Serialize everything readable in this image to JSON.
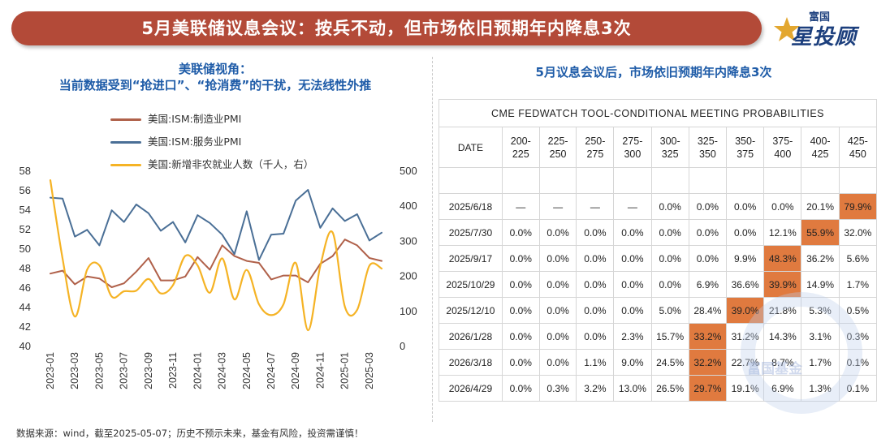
{
  "banner": {
    "title": "5月美联储议息会议：按兵不动，但市场依旧预期年内降息3次"
  },
  "logo": {
    "small": "富国",
    "big": "星投顾"
  },
  "left_panel": {
    "title_line1": "美联储视角：",
    "title_line2": "当前数据受到“抢进口”、“抢消费”的干扰，无法线性外推"
  },
  "right_panel": {
    "title": "5月议息会议后，市场依旧预期年内降息3次"
  },
  "colors": {
    "manufacturing": "#b0614a",
    "services": "#4a6f96",
    "payrolls": "#f5b325",
    "highlight": "#e07a3f",
    "banner": "#b34a38",
    "title_blue": "#1f5ca8"
  },
  "chart_data": {
    "type": "line",
    "x": [
      "2023-01",
      "2023-02",
      "2023-03",
      "2023-04",
      "2023-05",
      "2023-06",
      "2023-07",
      "2023-08",
      "2023-09",
      "2023-10",
      "2023-11",
      "2023-12",
      "2024-01",
      "2024-02",
      "2024-03",
      "2024-04",
      "2024-05",
      "2024-06",
      "2024-07",
      "2024-08",
      "2024-09",
      "2024-10",
      "2024-11",
      "2024-12",
      "2025-01",
      "2025-02",
      "2025-03",
      "2025-04"
    ],
    "x_tick_labels": [
      "2023-01",
      "2023-03",
      "2023-05",
      "2023-07",
      "2023-09",
      "2023-11",
      "2024-01",
      "2024-03",
      "2024-05",
      "2024-07",
      "2024-09",
      "2024-11",
      "2025-01",
      "2025-03"
    ],
    "left_axis": {
      "ylim": [
        40,
        58
      ],
      "ticks": [
        "40",
        "42",
        "44",
        "46",
        "48",
        "50",
        "52",
        "54",
        "56",
        "58"
      ]
    },
    "right_axis": {
      "ylim": [
        0,
        500
      ],
      "ticks": [
        "0",
        "100",
        "200",
        "300",
        "400",
        "500"
      ]
    },
    "series": [
      {
        "name": "美国:ISM:制造业PMI",
        "axis": "left",
        "color": "#b0614a",
        "values": [
          47.4,
          47.7,
          46.3,
          47.1,
          46.9,
          46.0,
          46.4,
          47.6,
          49.0,
          46.7,
          46.7,
          47.1,
          49.1,
          47.8,
          50.3,
          49.2,
          48.7,
          48.5,
          46.8,
          47.2,
          47.2,
          46.5,
          48.4,
          49.2,
          50.9,
          50.3,
          49.0,
          48.7
        ]
      },
      {
        "name": "美国:ISM:服务业PMI",
        "axis": "left",
        "color": "#4a6f96",
        "values": [
          55.2,
          55.1,
          51.2,
          51.9,
          50.3,
          53.9,
          52.7,
          54.5,
          53.6,
          51.8,
          52.7,
          50.6,
          53.4,
          52.6,
          51.4,
          49.4,
          53.8,
          48.8,
          51.4,
          51.5,
          54.9,
          56.0,
          52.1,
          54.1,
          52.8,
          53.5,
          50.8,
          51.6
        ]
      },
      {
        "name": "美国:新增非农就业人数（千人，右）",
        "axis": "right",
        "color": "#f5b325",
        "values": [
          472,
          248,
          83,
          217,
          229,
          140,
          155,
          157,
          190,
          149,
          173,
          256,
          229,
          151,
          249,
          132,
          216,
          118,
          87,
          118,
          236,
          44,
          227,
          323,
          111,
          102,
          228,
          220
        ]
      }
    ]
  },
  "fedwatch": {
    "title": "CME FEDWATCH TOOL-CONDITIONAL MEETING PROBABILITIES",
    "date_header": "DATE",
    "ranges": [
      [
        "200-",
        "225"
      ],
      [
        "225-",
        "250"
      ],
      [
        "250-",
        "275"
      ],
      [
        "275-",
        "300"
      ],
      [
        "300-",
        "325"
      ],
      [
        "325-",
        "350"
      ],
      [
        "350-",
        "375"
      ],
      [
        "375-",
        "400"
      ],
      [
        "400-",
        "425"
      ],
      [
        "425-",
        "450"
      ]
    ],
    "rows": [
      {
        "date": "2025/6/18",
        "values": [
          "—",
          "—",
          "—",
          "—",
          "0.0%",
          "0.0%",
          "0.0%",
          "0.0%",
          "20.1%",
          "79.9%"
        ],
        "hl": 9
      },
      {
        "date": "2025/7/30",
        "values": [
          "0.0%",
          "0.0%",
          "0.0%",
          "0.0%",
          "0.0%",
          "0.0%",
          "0.0%",
          "12.1%",
          "55.9%",
          "32.0%"
        ],
        "hl": 8
      },
      {
        "date": "2025/9/17",
        "values": [
          "0.0%",
          "0.0%",
          "0.0%",
          "0.0%",
          "0.0%",
          "0.0%",
          "9.9%",
          "48.3%",
          "36.2%",
          "5.6%"
        ],
        "hl": 7
      },
      {
        "date": "2025/10/29",
        "values": [
          "0.0%",
          "0.0%",
          "0.0%",
          "0.0%",
          "0.0%",
          "6.9%",
          "36.6%",
          "39.9%",
          "14.9%",
          "1.7%"
        ],
        "hl": 7
      },
      {
        "date": "2025/12/10",
        "values": [
          "0.0%",
          "0.0%",
          "0.0%",
          "0.0%",
          "5.0%",
          "28.4%",
          "39.0%",
          "21.8%",
          "5.3%",
          "0.5%"
        ],
        "hl": 6
      },
      {
        "date": "2026/1/28",
        "values": [
          "0.0%",
          "0.0%",
          "0.0%",
          "2.3%",
          "15.7%",
          "33.2%",
          "31.2%",
          "14.3%",
          "3.1%",
          "0.3%"
        ],
        "hl": 5
      },
      {
        "date": "2026/3/18",
        "values": [
          "0.0%",
          "0.0%",
          "1.1%",
          "9.0%",
          "24.5%",
          "32.2%",
          "22.7%",
          "8.7%",
          "1.7%",
          "0.1%"
        ],
        "hl": 5
      },
      {
        "date": "2026/4/29",
        "values": [
          "0.0%",
          "0.3%",
          "3.2%",
          "13.0%",
          "26.5%",
          "29.7%",
          "19.1%",
          "6.9%",
          "1.3%",
          "0.1%"
        ],
        "hl": 5
      }
    ]
  },
  "watermark": {
    "text": "富国基金"
  },
  "footer": {
    "text": "数据来源：wind，截至2025-05-07；历史不预示未来，基金有风险，投资需谨慎！"
  }
}
